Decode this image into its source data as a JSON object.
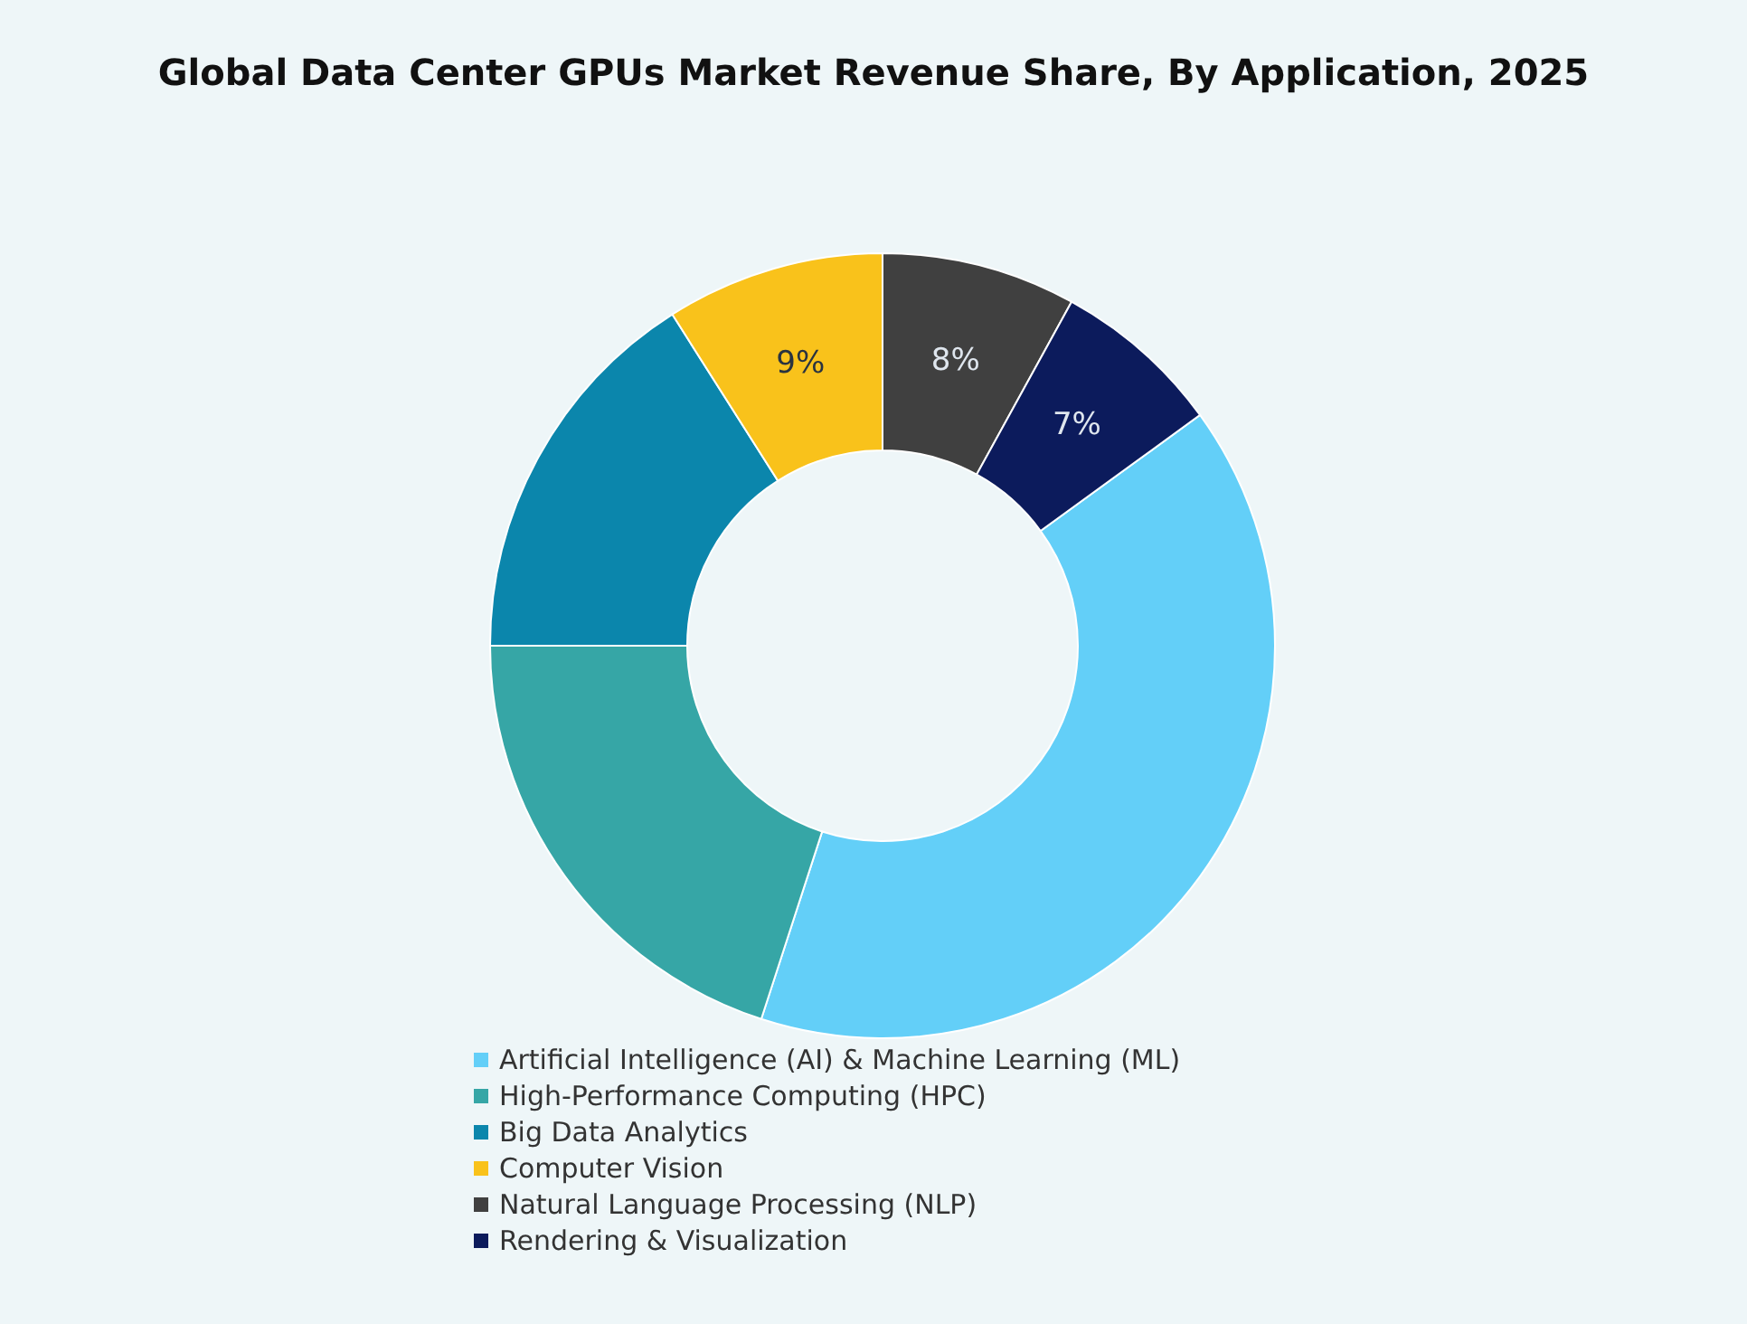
{
  "chart_data": {
    "type": "donut",
    "title": "Global Data Center GPUs Market Revenue Share, By Application, 2025",
    "categories": [
      "Artificial Intelligence (AI) & Machine Learning (ML)",
      "High-Performance Computing (HPC)",
      "Big Data Analytics",
      "Computer Vision",
      "Natural Language Processing (NLP)",
      "Rendering & Visualization"
    ],
    "values": [
      40,
      20,
      16,
      9,
      8,
      7
    ],
    "value_labels": [
      null,
      null,
      null,
      "9%",
      "8%",
      "7%"
    ],
    "colors": [
      "#63cff8",
      "#36a6a6",
      "#0b86ac",
      "#f9c21b",
      "#404040",
      "#0c1b5c"
    ],
    "legend": "bottom"
  }
}
